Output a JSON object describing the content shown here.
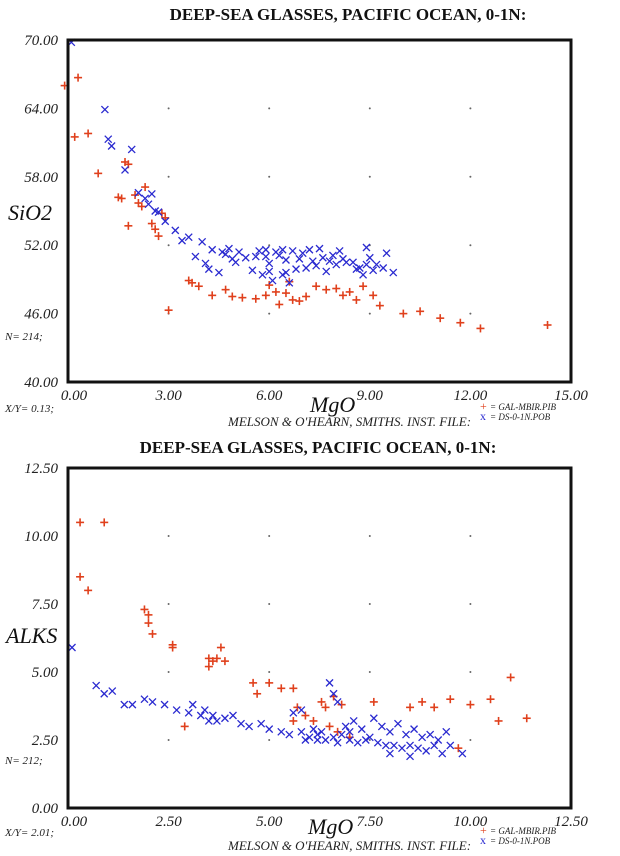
{
  "colors": {
    "plus": "#e0401c",
    "cross": "#2a2ad0",
    "axis": "#111111",
    "grid": "#666666"
  },
  "chart_data": [
    {
      "type": "scatter",
      "title": "DEEP-SEA GLASSES, PACIFIC OCEAN, 0-1N:",
      "xlabel": "MgO",
      "ylabel": "SiO2",
      "xlim": [
        0,
        15
      ],
      "ylim": [
        40,
        70
      ],
      "xticks": [
        "0.00",
        "3.00",
        "6.00",
        "9.00",
        "12.00",
        "15.00"
      ],
      "yticks": [
        "40.00",
        "46.00",
        "52.00",
        "58.00",
        "64.00",
        "70.00"
      ],
      "n_label": "N= 214;",
      "ratio_label": "X/Y= 0.13;",
      "source": "MELSON & O'HEARN, SMITHS. INST. FILE:",
      "legend": [
        {
          "symbol": "+",
          "label": "= GAL-MBIR.PIB"
        },
        {
          "symbol": "x",
          "label": "= DS-0-1N.POB"
        }
      ],
      "series": [
        {
          "marker": "plus",
          "points": [
            [
              -0.1,
              66
            ],
            [
              0.3,
              66.7
            ],
            [
              0.2,
              61.5
            ],
            [
              0.6,
              61.8
            ],
            [
              0.9,
              58.3
            ],
            [
              1.7,
              59.3
            ],
            [
              1.8,
              59.1
            ],
            [
              1.5,
              56.2
            ],
            [
              1.6,
              56.1
            ],
            [
              2.0,
              56.4
            ],
            [
              2.1,
              55.7
            ],
            [
              2.2,
              55.4
            ],
            [
              2.3,
              57.1
            ],
            [
              2.8,
              54.8
            ],
            [
              2.9,
              54.4
            ],
            [
              1.8,
              53.7
            ],
            [
              2.6,
              53.4
            ],
            [
              2.7,
              52.8
            ],
            [
              2.5,
              53.9
            ],
            [
              3.0,
              46.3
            ],
            [
              3.6,
              48.9
            ],
            [
              3.7,
              48.7
            ],
            [
              3.9,
              48.4
            ],
            [
              4.3,
              47.6
            ],
            [
              4.7,
              48.1
            ],
            [
              4.9,
              47.5
            ],
            [
              5.2,
              47.4
            ],
            [
              5.6,
              47.3
            ],
            [
              5.9,
              47.6
            ],
            [
              6.0,
              48.5
            ],
            [
              6.2,
              47.9
            ],
            [
              6.3,
              46.8
            ],
            [
              6.5,
              47.8
            ],
            [
              6.7,
              47.2
            ],
            [
              6.6,
              48.8
            ],
            [
              6.9,
              47.1
            ],
            [
              7.1,
              47.5
            ],
            [
              7.4,
              48.4
            ],
            [
              7.7,
              48.1
            ],
            [
              8.2,
              47.6
            ],
            [
              8.4,
              47.9
            ],
            [
              8.8,
              48.4
            ],
            [
              9.3,
              46.7
            ],
            [
              10.0,
              46.0
            ],
            [
              10.5,
              46.2
            ],
            [
              11.1,
              45.6
            ],
            [
              11.7,
              45.2
            ],
            [
              12.3,
              44.7
            ],
            [
              8.0,
              48.2
            ],
            [
              8.6,
              47.2
            ],
            [
              9.1,
              47.6
            ],
            [
              14.3,
              45.0
            ]
          ]
        },
        {
          "marker": "cross",
          "points": [
            [
              0.1,
              69.8
            ],
            [
              1.1,
              63.9
            ],
            [
              1.2,
              61.3
            ],
            [
              1.3,
              60.7
            ],
            [
              1.9,
              60.4
            ],
            [
              1.7,
              58.6
            ],
            [
              2.1,
              56.6
            ],
            [
              2.5,
              56.5
            ],
            [
              2.4,
              55.6
            ],
            [
              2.3,
              56.1
            ],
            [
              2.6,
              55.0
            ],
            [
              2.7,
              54.9
            ],
            [
              2.9,
              54.1
            ],
            [
              3.2,
              53.3
            ],
            [
              3.6,
              52.7
            ],
            [
              3.4,
              52.4
            ],
            [
              4.0,
              52.3
            ],
            [
              4.3,
              51.6
            ],
            [
              4.7,
              51.2
            ],
            [
              5.0,
              50.5
            ],
            [
              5.3,
              50.9
            ],
            [
              3.8,
              51.0
            ],
            [
              4.2,
              49.9
            ],
            [
              4.5,
              49.6
            ],
            [
              4.1,
              50.4
            ],
            [
              4.6,
              51.4
            ],
            [
              4.8,
              51.7
            ],
            [
              4.9,
              50.8
            ],
            [
              5.1,
              51.4
            ],
            [
              5.7,
              51.5
            ],
            [
              5.9,
              51.0
            ],
            [
              6.0,
              50.4
            ],
            [
              6.3,
              51.1
            ],
            [
              6.5,
              50.7
            ],
            [
              6.7,
              51.5
            ],
            [
              7.0,
              51.3
            ],
            [
              7.3,
              50.6
            ],
            [
              7.6,
              50.9
            ],
            [
              7.9,
              51.1
            ],
            [
              8.2,
              50.8
            ],
            [
              8.5,
              50.5
            ],
            [
              8.7,
              50.0
            ],
            [
              8.9,
              50.3
            ],
            [
              9.1,
              49.8
            ],
            [
              9.4,
              50.0
            ],
            [
              9.7,
              49.6
            ],
            [
              5.5,
              49.8
            ],
            [
              5.8,
              49.4
            ],
            [
              6.1,
              48.9
            ],
            [
              6.4,
              49.4
            ],
            [
              6.6,
              48.7
            ],
            [
              6.8,
              49.9
            ],
            [
              7.1,
              50.0
            ],
            [
              7.4,
              50.2
            ],
            [
              7.7,
              49.7
            ],
            [
              8.0,
              50.3
            ],
            [
              8.3,
              50.5
            ],
            [
              8.6,
              49.9
            ],
            [
              8.8,
              49.4
            ],
            [
              9.0,
              50.9
            ],
            [
              9.2,
              50.3
            ],
            [
              9.5,
              51.3
            ],
            [
              5.6,
              51.0
            ],
            [
              6.2,
              51.4
            ],
            [
              6.9,
              50.8
            ],
            [
              7.2,
              51.6
            ],
            [
              7.8,
              50.6
            ],
            [
              8.1,
              51.5
            ],
            [
              6.0,
              49.7
            ],
            [
              6.5,
              49.6
            ],
            [
              5.9,
              51.6
            ],
            [
              6.4,
              51.6
            ],
            [
              7.5,
              51.7
            ],
            [
              8.9,
              51.8
            ]
          ]
        }
      ]
    },
    {
      "type": "scatter",
      "title": "DEEP-SEA GLASSES, PACIFIC OCEAN, 0-1N:",
      "xlabel": "MgO",
      "ylabel": "ALKS",
      "xlim": [
        0,
        12.5
      ],
      "ylim": [
        0,
        12.5
      ],
      "xticks": [
        "0.00",
        "2.50",
        "5.00",
        "7.50",
        "10.00",
        "12.50"
      ],
      "yticks": [
        "0.00",
        "2.50",
        "5.00",
        "7.50",
        "10.00",
        "12.50"
      ],
      "n_label": "N= 212;",
      "ratio_label": "X/Y= 2.01;",
      "source": "MELSON & O'HEARN, SMITHS. INST. FILE:",
      "legend": [
        {
          "symbol": "+",
          "label": "= GAL-MBIR.PIB"
        },
        {
          "symbol": "x",
          "label": "= DS-0-1N.POB"
        }
      ],
      "series": [
        {
          "marker": "plus",
          "points": [
            [
              0.3,
              10.5
            ],
            [
              0.9,
              10.5
            ],
            [
              0.3,
              8.5
            ],
            [
              0.5,
              8.0
            ],
            [
              1.9,
              7.3
            ],
            [
              2.0,
              7.1
            ],
            [
              2.0,
              6.8
            ],
            [
              2.1,
              6.4
            ],
            [
              2.6,
              6.0
            ],
            [
              2.6,
              5.9
            ],
            [
              3.5,
              5.5
            ],
            [
              3.6,
              5.4
            ],
            [
              3.7,
              5.5
            ],
            [
              3.5,
              5.2
            ],
            [
              3.8,
              5.9
            ],
            [
              3.9,
              5.4
            ],
            [
              2.9,
              3.0
            ],
            [
              4.6,
              4.6
            ],
            [
              4.7,
              4.2
            ],
            [
              5.0,
              4.6
            ],
            [
              5.3,
              4.4
            ],
            [
              5.6,
              4.4
            ],
            [
              5.7,
              3.7
            ],
            [
              5.6,
              3.2
            ],
            [
              5.9,
              3.4
            ],
            [
              6.1,
              3.2
            ],
            [
              6.3,
              3.9
            ],
            [
              6.4,
              3.7
            ],
            [
              6.6,
              4.1
            ],
            [
              6.8,
              3.8
            ],
            [
              6.5,
              3.0
            ],
            [
              6.7,
              2.8
            ],
            [
              7.0,
              2.6
            ],
            [
              7.6,
              3.9
            ],
            [
              8.5,
              3.7
            ],
            [
              8.8,
              3.9
            ],
            [
              9.1,
              3.7
            ],
            [
              9.5,
              4.0
            ],
            [
              9.7,
              2.2
            ],
            [
              10.0,
              3.8
            ],
            [
              10.5,
              4.0
            ],
            [
              10.7,
              3.2
            ],
            [
              11.0,
              4.8
            ],
            [
              11.4,
              3.3
            ]
          ]
        },
        {
          "marker": "cross",
          "points": [
            [
              0.1,
              5.9
            ],
            [
              0.7,
              4.5
            ],
            [
              0.9,
              4.2
            ],
            [
              1.1,
              4.3
            ],
            [
              1.4,
              3.8
            ],
            [
              1.6,
              3.8
            ],
            [
              1.9,
              4.0
            ],
            [
              2.1,
              3.9
            ],
            [
              2.4,
              3.8
            ],
            [
              2.7,
              3.6
            ],
            [
              3.0,
              3.5
            ],
            [
              3.1,
              3.8
            ],
            [
              3.4,
              3.6
            ],
            [
              3.6,
              3.4
            ],
            [
              3.3,
              3.4
            ],
            [
              3.5,
              3.2
            ],
            [
              3.7,
              3.2
            ],
            [
              3.9,
              3.3
            ],
            [
              4.1,
              3.4
            ],
            [
              4.3,
              3.1
            ],
            [
              4.5,
              3.0
            ],
            [
              4.8,
              3.1
            ],
            [
              5.0,
              2.9
            ],
            [
              5.3,
              2.8
            ],
            [
              5.5,
              2.7
            ],
            [
              5.8,
              2.8
            ],
            [
              6.0,
              2.6
            ],
            [
              6.2,
              2.7
            ],
            [
              6.4,
              2.5
            ],
            [
              6.6,
              2.6
            ],
            [
              6.8,
              2.7
            ],
            [
              7.0,
              2.5
            ],
            [
              7.2,
              2.4
            ],
            [
              7.5,
              2.6
            ],
            [
              7.7,
              2.4
            ],
            [
              7.9,
              2.3
            ],
            [
              8.1,
              2.3
            ],
            [
              8.3,
              2.2
            ],
            [
              8.5,
              2.3
            ],
            [
              8.7,
              2.2
            ],
            [
              8.9,
              2.1
            ],
            [
              9.1,
              2.3
            ],
            [
              9.3,
              2.0
            ],
            [
              9.5,
              2.3
            ],
            [
              9.8,
              2.0
            ],
            [
              5.6,
              3.5
            ],
            [
              5.8,
              3.6
            ],
            [
              6.5,
              4.6
            ],
            [
              6.6,
              4.2
            ],
            [
              6.7,
              3.9
            ],
            [
              6.9,
              3.0
            ],
            [
              7.1,
              3.2
            ],
            [
              7.3,
              2.9
            ],
            [
              7.6,
              3.3
            ],
            [
              7.8,
              3.0
            ],
            [
              8.0,
              2.8
            ],
            [
              8.2,
              3.1
            ],
            [
              8.4,
              2.7
            ],
            [
              8.6,
              2.9
            ],
            [
              8.8,
              2.6
            ],
            [
              9.0,
              2.7
            ],
            [
              9.2,
              2.5
            ],
            [
              9.4,
              2.8
            ],
            [
              6.1,
              2.9
            ],
            [
              6.3,
              2.8
            ],
            [
              5.9,
              2.5
            ],
            [
              6.7,
              2.4
            ],
            [
              7.4,
              2.5
            ],
            [
              8.0,
              2.0
            ],
            [
              8.5,
              1.9
            ],
            [
              7.0,
              2.8
            ],
            [
              6.2,
              2.5
            ]
          ]
        }
      ]
    }
  ]
}
